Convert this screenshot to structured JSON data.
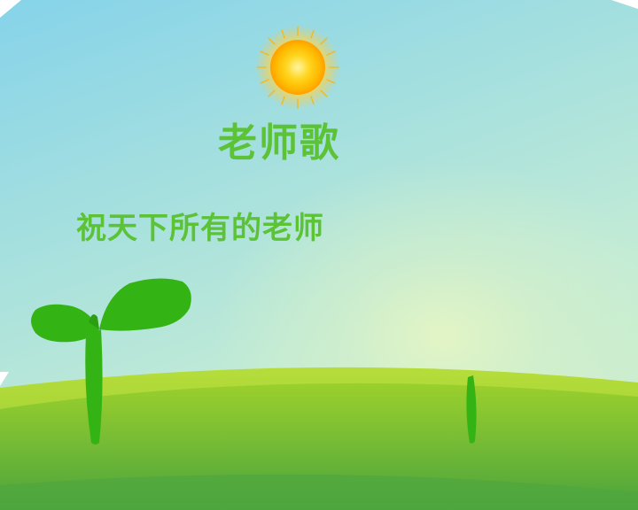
{
  "title": "老师歌",
  "subtitle": "祝天下所有的老师",
  "colors": {
    "sky_top": "#86d3ea",
    "sky_bottom": "#d4f1c8",
    "grass_light": "#a8d428",
    "grass_dark": "#4aa23c",
    "sprout": "#33b414",
    "sun": "#ffd21a",
    "text": "#5cc236"
  },
  "icons": {
    "sun": "sun-icon",
    "sprout": "sprout-icon",
    "stem": "stem-icon"
  }
}
